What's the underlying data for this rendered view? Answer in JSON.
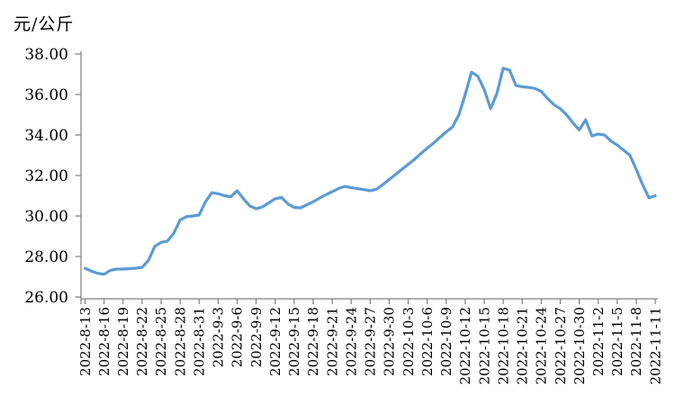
{
  "chart": {
    "line_color": "#5B9BD5",
    "axis_color": "#7f7f7f",
    "label_color": "#000000",
    "background": "#ffffff",
    "line_width": 3.2
  },
  "chart_data": {
    "type": "line",
    "title": "元/公斤",
    "unit_label": "元/公斤",
    "ylim": [
      26.0,
      38.0
    ],
    "yticks": [
      26,
      28,
      30,
      32,
      34,
      36,
      38
    ],
    "ytick_labels": [
      "26.00",
      "28.00",
      "30.00",
      "32.00",
      "34.00",
      "36.00",
      "38.00"
    ],
    "grid": false,
    "legend": "none",
    "x_tick_labels": [
      "2022-8-13",
      "2022-8-16",
      "2022-8-19",
      "2022-8-22",
      "2022-8-25",
      "2022-8-28",
      "2022-8-31",
      "2022-9-3",
      "2022-9-6",
      "2022-9-9",
      "2022-9-12",
      "2022-9-15",
      "2022-9-18",
      "2022-9-21",
      "2022-9-24",
      "2022-9-27",
      "2022-9-30",
      "2022-10-3",
      "2022-10-6",
      "2022-10-9",
      "2022-10-12",
      "2022-10-15",
      "2022-10-18",
      "2022-10-21",
      "2022-10-24",
      "2022-10-27",
      "2022-10-30",
      "2022-11-2",
      "2022-11-5",
      "2022-11-8",
      "2022-11-11"
    ],
    "x": [
      "2022-8-13",
      "2022-8-14",
      "2022-8-15",
      "2022-8-16",
      "2022-8-17",
      "2022-8-18",
      "2022-8-19",
      "2022-8-20",
      "2022-8-21",
      "2022-8-22",
      "2022-8-23",
      "2022-8-24",
      "2022-8-25",
      "2022-8-26",
      "2022-8-27",
      "2022-8-28",
      "2022-8-29",
      "2022-8-30",
      "2022-8-31",
      "2022-9-1",
      "2022-9-2",
      "2022-9-3",
      "2022-9-4",
      "2022-9-5",
      "2022-9-6",
      "2022-9-7",
      "2022-9-8",
      "2022-9-9",
      "2022-9-10",
      "2022-9-11",
      "2022-9-12",
      "2022-9-13",
      "2022-9-14",
      "2022-9-15",
      "2022-9-16",
      "2022-9-17",
      "2022-9-18",
      "2022-9-19",
      "2022-9-20",
      "2022-9-21",
      "2022-9-22",
      "2022-9-23",
      "2022-9-24",
      "2022-9-25",
      "2022-9-26",
      "2022-9-27",
      "2022-9-28",
      "2022-9-29",
      "2022-9-30",
      "2022-10-1",
      "2022-10-2",
      "2022-10-3",
      "2022-10-4",
      "2022-10-5",
      "2022-10-6",
      "2022-10-7",
      "2022-10-8",
      "2022-10-9",
      "2022-10-10",
      "2022-10-11",
      "2022-10-12",
      "2022-10-13",
      "2022-10-14",
      "2022-10-15",
      "2022-10-16",
      "2022-10-17",
      "2022-10-18",
      "2022-10-19",
      "2022-10-20",
      "2022-10-21",
      "2022-10-22",
      "2022-10-23",
      "2022-10-24",
      "2022-10-25",
      "2022-10-26",
      "2022-10-27",
      "2022-10-28",
      "2022-10-29",
      "2022-10-30",
      "2022-10-31",
      "2022-11-1",
      "2022-11-2",
      "2022-11-3",
      "2022-11-4",
      "2022-11-5",
      "2022-11-6",
      "2022-11-7",
      "2022-11-8",
      "2022-11-9",
      "2022-11-10",
      "2022-11-11"
    ],
    "values": [
      27.42,
      27.28,
      27.17,
      27.12,
      27.32,
      27.38,
      27.38,
      27.4,
      27.42,
      27.46,
      27.8,
      28.5,
      28.7,
      28.76,
      29.15,
      29.8,
      29.97,
      30.0,
      30.05,
      30.7,
      31.15,
      31.1,
      31.0,
      30.95,
      31.25,
      30.85,
      30.5,
      30.36,
      30.45,
      30.65,
      30.85,
      30.92,
      30.6,
      30.42,
      30.4,
      30.55,
      30.7,
      30.88,
      31.05,
      31.2,
      31.36,
      31.46,
      31.4,
      31.35,
      31.3,
      31.25,
      31.32,
      31.55,
      31.8,
      32.05,
      32.3,
      32.55,
      32.8,
      33.08,
      33.35,
      33.6,
      33.88,
      34.15,
      34.4,
      35.0,
      36.0,
      37.1,
      36.9,
      36.25,
      35.3,
      36.05,
      37.3,
      37.2,
      36.45,
      36.38,
      36.35,
      36.3,
      36.15,
      35.8,
      35.5,
      35.3,
      35.0,
      34.6,
      34.25,
      34.75,
      33.95,
      34.05,
      34.0,
      33.7,
      33.5,
      33.25,
      33.0,
      32.3,
      31.55,
      30.9,
      31.0
    ]
  }
}
